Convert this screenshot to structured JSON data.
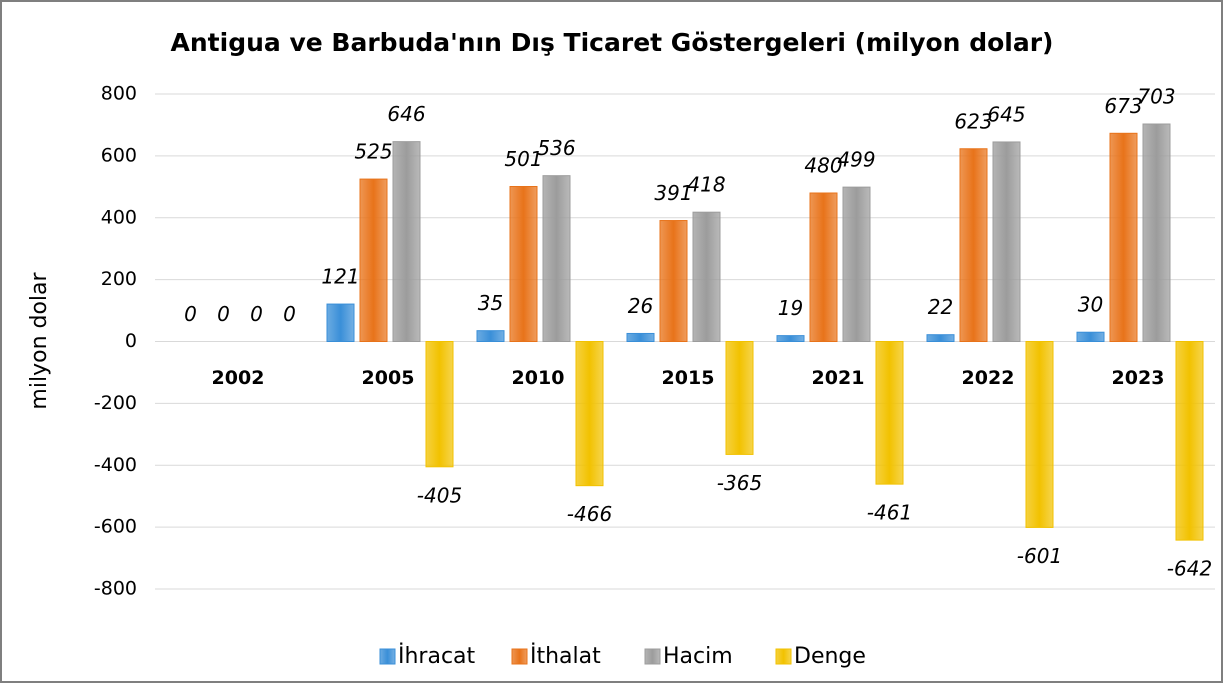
{
  "chart_data": {
    "type": "bar",
    "title": "Antigua ve Barbuda'nın Dış Ticaret Göstergeleri  (milyon dolar)",
    "y_label": "milyon dolar",
    "categories": [
      "2002",
      "2005",
      "2010",
      "2015",
      "2021",
      "2022",
      "2023"
    ],
    "series": [
      {
        "name": "İhracat",
        "color": "#3a8fd8",
        "values": [
          0,
          121,
          35,
          26,
          19,
          22,
          30
        ]
      },
      {
        "name": "İthalat",
        "color": "#e8731a",
        "values": [
          0,
          525,
          501,
          391,
          480,
          623,
          673
        ]
      },
      {
        "name": "Hacim",
        "color": "#9c9c9c",
        "values": [
          0,
          646,
          536,
          418,
          499,
          645,
          703
        ]
      },
      {
        "name": "Denge",
        "color": "#f2c200",
        "values": [
          0,
          -405,
          -466,
          -365,
          -461,
          -601,
          -642
        ]
      }
    ],
    "ylim": [
      -800,
      800
    ],
    "yticks": [
      -800,
      -600,
      -400,
      -200,
      0,
      200,
      400,
      600,
      800
    ],
    "grid": true,
    "legend": "bottom"
  }
}
